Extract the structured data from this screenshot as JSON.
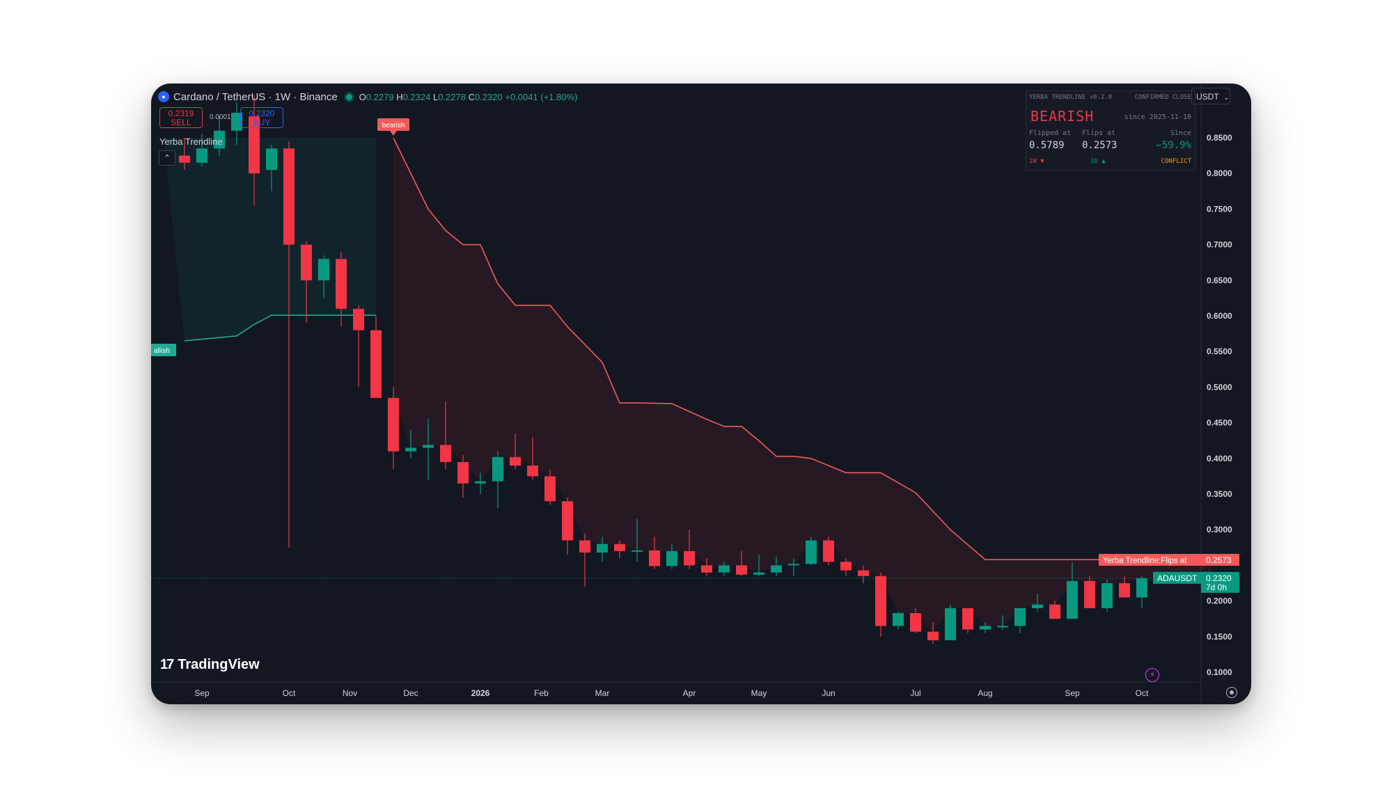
{
  "header": {
    "symbol": "Cardano / TetherUS · 1W · Binance",
    "ohlc": {
      "o_label": "O",
      "o": "0.2279",
      "h_label": "H",
      "h": "0.2324",
      "l_label": "L",
      "l": "0.2278",
      "c_label": "C",
      "c": "0.2320",
      "change": "+0.0041 (+1.80%)"
    },
    "sell_price": "0.2319",
    "sell_label": "SELL",
    "spread": "0.0001",
    "buy_price": "0.2320",
    "buy_label": "BUY",
    "indicator_name": "Yerba Trendline",
    "currency": "USDT"
  },
  "panel": {
    "version": "YERBA TRENDLINE v0.2.0",
    "confirm": "CONFIRMED CLOSE",
    "state": "BEARISH",
    "since": "since 2025-11-10",
    "flipped_label": "Flipped at",
    "flipped_value": "0.5789",
    "flips_label": "Flips at",
    "flips_value": "0.2573",
    "since_label": "Since",
    "since_value": "−59.9%",
    "tf1": "1W ▼",
    "tf2": "1D ▲",
    "conflict": "CONFLICT"
  },
  "logo_text": "TradingView",
  "colors": {
    "bg": "#131722",
    "up": "#089981",
    "down": "#f23645",
    "bear_line": "#f05a5a",
    "bull_line": "#22ab94"
  },
  "chart_data": {
    "type": "candlestick",
    "y_axis_ticks": [
      "0.8500",
      "0.8000",
      "0.7500",
      "0.7000",
      "0.6500",
      "0.6000",
      "0.5500",
      "0.5000",
      "0.4500",
      "0.4000",
      "0.3500",
      "0.3000",
      "0.2000",
      "0.1500",
      "0.1000"
    ],
    "x_axis_labels": [
      "Sep",
      "Oct",
      "Nov",
      "Dec",
      "2026",
      "Feb",
      "Mar",
      "Apr",
      "May",
      "Jun",
      "Jul",
      "Aug",
      "Sep",
      "Oct"
    ],
    "candles": [
      {
        "o": 0.825,
        "h": 0.85,
        "l": 0.805,
        "c": 0.815
      },
      {
        "o": 0.815,
        "h": 0.855,
        "l": 0.81,
        "c": 0.835
      },
      {
        "o": 0.835,
        "h": 0.88,
        "l": 0.825,
        "c": 0.86
      },
      {
        "o": 0.86,
        "h": 0.9,
        "l": 0.84,
        "c": 0.885
      },
      {
        "o": 0.88,
        "h": 0.91,
        "l": 0.755,
        "c": 0.8
      },
      {
        "o": 0.805,
        "h": 0.84,
        "l": 0.775,
        "c": 0.835
      },
      {
        "o": 0.835,
        "h": 0.845,
        "l": 0.275,
        "c": 0.7
      },
      {
        "o": 0.7,
        "h": 0.705,
        "l": 0.59,
        "c": 0.65
      },
      {
        "o": 0.65,
        "h": 0.685,
        "l": 0.625,
        "c": 0.68
      },
      {
        "o": 0.68,
        "h": 0.69,
        "l": 0.585,
        "c": 0.61
      },
      {
        "o": 0.61,
        "h": 0.615,
        "l": 0.5,
        "c": 0.58
      },
      {
        "o": 0.58,
        "h": 0.6,
        "l": 0.49,
        "c": 0.485
      },
      {
        "o": 0.485,
        "h": 0.5,
        "l": 0.385,
        "c": 0.41
      },
      {
        "o": 0.41,
        "h": 0.44,
        "l": 0.4,
        "c": 0.415
      },
      {
        "o": 0.415,
        "h": 0.455,
        "l": 0.37,
        "c": 0.419
      },
      {
        "o": 0.419,
        "h": 0.48,
        "l": 0.385,
        "c": 0.395
      },
      {
        "o": 0.395,
        "h": 0.405,
        "l": 0.345,
        "c": 0.365
      },
      {
        "o": 0.365,
        "h": 0.38,
        "l": 0.35,
        "c": 0.368
      },
      {
        "o": 0.368,
        "h": 0.41,
        "l": 0.33,
        "c": 0.402
      },
      {
        "o": 0.402,
        "h": 0.435,
        "l": 0.385,
        "c": 0.39
      },
      {
        "o": 0.39,
        "h": 0.43,
        "l": 0.37,
        "c": 0.375
      },
      {
        "o": 0.375,
        "h": 0.385,
        "l": 0.335,
        "c": 0.34
      },
      {
        "o": 0.34,
        "h": 0.345,
        "l": 0.265,
        "c": 0.285
      },
      {
        "o": 0.285,
        "h": 0.295,
        "l": 0.22,
        "c": 0.268
      },
      {
        "o": 0.268,
        "h": 0.29,
        "l": 0.255,
        "c": 0.28
      },
      {
        "o": 0.28,
        "h": 0.285,
        "l": 0.26,
        "c": 0.27
      },
      {
        "o": 0.27,
        "h": 0.315,
        "l": 0.255,
        "c": 0.271
      },
      {
        "o": 0.271,
        "h": 0.29,
        "l": 0.245,
        "c": 0.249
      },
      {
        "o": 0.249,
        "h": 0.28,
        "l": 0.245,
        "c": 0.27
      },
      {
        "o": 0.27,
        "h": 0.3,
        "l": 0.245,
        "c": 0.25
      },
      {
        "o": 0.25,
        "h": 0.26,
        "l": 0.235,
        "c": 0.24
      },
      {
        "o": 0.24,
        "h": 0.255,
        "l": 0.235,
        "c": 0.25
      },
      {
        "o": 0.25,
        "h": 0.27,
        "l": 0.235,
        "c": 0.237
      },
      {
        "o": 0.237,
        "h": 0.265,
        "l": 0.235,
        "c": 0.24
      },
      {
        "o": 0.24,
        "h": 0.262,
        "l": 0.235,
        "c": 0.25
      },
      {
        "o": 0.25,
        "h": 0.26,
        "l": 0.235,
        "c": 0.252
      },
      {
        "o": 0.252,
        "h": 0.29,
        "l": 0.25,
        "c": 0.285
      },
      {
        "o": 0.285,
        "h": 0.29,
        "l": 0.25,
        "c": 0.255
      },
      {
        "o": 0.255,
        "h": 0.26,
        "l": 0.235,
        "c": 0.243
      },
      {
        "o": 0.243,
        "h": 0.25,
        "l": 0.225,
        "c": 0.235
      },
      {
        "o": 0.235,
        "h": 0.24,
        "l": 0.15,
        "c": 0.165
      },
      {
        "o": 0.165,
        "h": 0.185,
        "l": 0.16,
        "c": 0.183
      },
      {
        "o": 0.183,
        "h": 0.19,
        "l": 0.155,
        "c": 0.157
      },
      {
        "o": 0.157,
        "h": 0.17,
        "l": 0.14,
        "c": 0.145
      },
      {
        "o": 0.145,
        "h": 0.195,
        "l": 0.145,
        "c": 0.19
      },
      {
        "o": 0.19,
        "h": 0.19,
        "l": 0.155,
        "c": 0.16
      },
      {
        "o": 0.16,
        "h": 0.17,
        "l": 0.155,
        "c": 0.165
      },
      {
        "o": 0.165,
        "h": 0.18,
        "l": 0.16,
        "c": 0.165
      },
      {
        "o": 0.165,
        "h": 0.19,
        "l": 0.155,
        "c": 0.19
      },
      {
        "o": 0.19,
        "h": 0.21,
        "l": 0.185,
        "c": 0.195
      },
      {
        "o": 0.195,
        "h": 0.2,
        "l": 0.175,
        "c": 0.175
      },
      {
        "o": 0.175,
        "h": 0.255,
        "l": 0.175,
        "c": 0.228
      },
      {
        "o": 0.228,
        "h": 0.235,
        "l": 0.19,
        "c": 0.19
      },
      {
        "o": 0.19,
        "h": 0.23,
        "l": 0.185,
        "c": 0.225
      },
      {
        "o": 0.225,
        "h": 0.235,
        "l": 0.205,
        "c": 0.205
      },
      {
        "o": 0.205,
        "h": 0.235,
        "l": 0.19,
        "c": 0.232
      }
    ],
    "bear_trendline": [
      {
        "i": 12,
        "v": 0.85
      },
      {
        "i": 14,
        "v": 0.75
      },
      {
        "i": 15,
        "v": 0.72
      },
      {
        "i": 16,
        "v": 0.7
      },
      {
        "i": 17,
        "v": 0.7
      },
      {
        "i": 18,
        "v": 0.645
      },
      {
        "i": 19,
        "v": 0.615
      },
      {
        "i": 20,
        "v": 0.615
      },
      {
        "i": 21,
        "v": 0.615
      },
      {
        "i": 22,
        "v": 0.585
      },
      {
        "i": 24,
        "v": 0.535
      },
      {
        "i": 25,
        "v": 0.478
      },
      {
        "i": 26,
        "v": 0.478
      },
      {
        "i": 28,
        "v": 0.477
      },
      {
        "i": 30,
        "v": 0.455
      },
      {
        "i": 31,
        "v": 0.445
      },
      {
        "i": 32,
        "v": 0.445
      },
      {
        "i": 33,
        "v": 0.425
      },
      {
        "i": 34,
        "v": 0.403
      },
      {
        "i": 35,
        "v": 0.403
      },
      {
        "i": 36,
        "v": 0.4
      },
      {
        "i": 37,
        "v": 0.39
      },
      {
        "i": 38,
        "v": 0.38
      },
      {
        "i": 39,
        "v": 0.38
      },
      {
        "i": 40,
        "v": 0.38
      },
      {
        "i": 42,
        "v": 0.352
      },
      {
        "i": 44,
        "v": 0.3
      },
      {
        "i": 46,
        "v": 0.258
      },
      {
        "i": 50,
        "v": 0.258
      },
      {
        "i": 55,
        "v": 0.258
      },
      {
        "i": 59,
        "v": 0.258
      }
    ],
    "bull_trendline": [
      {
        "i": 0,
        "v": 0.565
      },
      {
        "i": 3,
        "v": 0.572
      },
      {
        "i": 4,
        "v": 0.588
      },
      {
        "i": 5,
        "v": 0.601
      },
      {
        "i": 10,
        "v": 0.601
      },
      {
        "i": 11,
        "v": 0.601
      }
    ],
    "labels": {
      "bearish_tag": "bearish",
      "bullish_tag": "allish",
      "flips_tag": "Yerba Trendline:Flips at",
      "flips_value": "0.2573",
      "symbol_tag": "ADAUSDT",
      "symbol_value": "0.2320",
      "countdown": "7d 0h"
    }
  }
}
